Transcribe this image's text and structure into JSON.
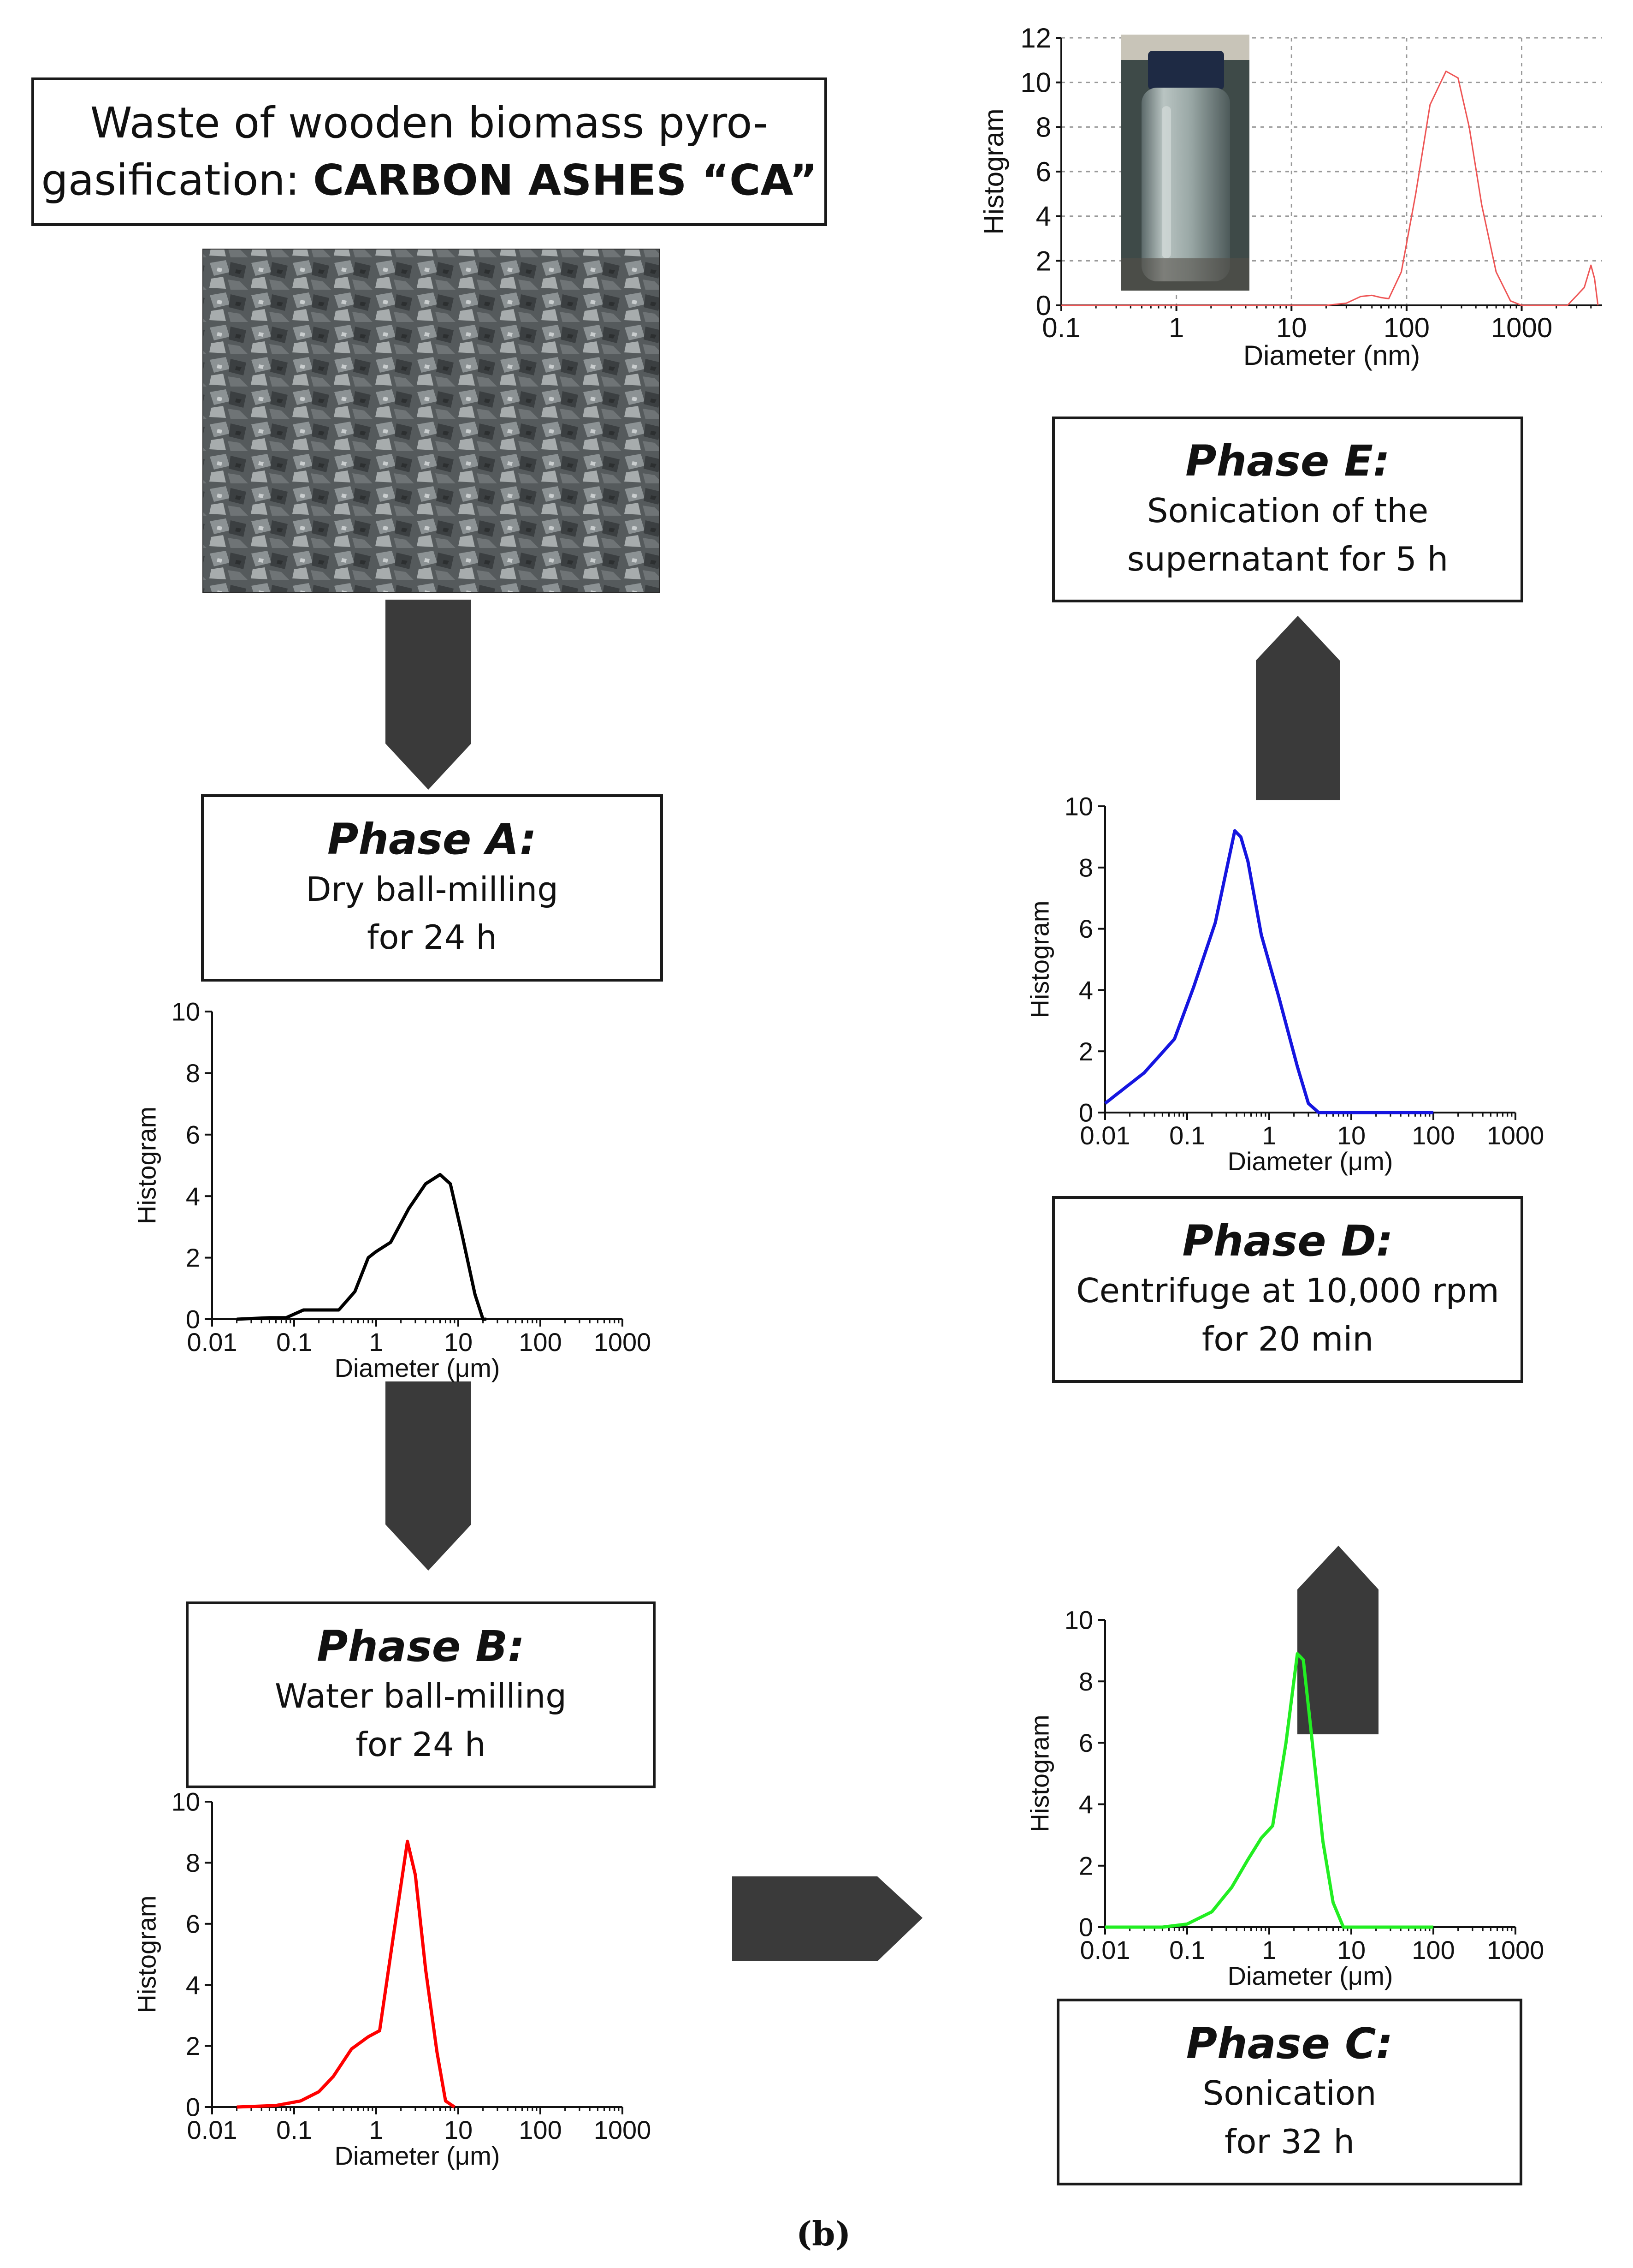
{
  "colors": {
    "arrow": "#3a3a3a",
    "phase_a": "#000000",
    "phase_b": "#ff0000",
    "phase_c": "#22ee22",
    "phase_d": "#1515e0",
    "phase_e": "#ee5555"
  },
  "start": {
    "line1": "Waste of wooden biomass pyro-",
    "line2_prefix": "gasification: ",
    "line2_bold": "CARBON ASHES “CA”"
  },
  "phases": {
    "a": {
      "title": "Phase A:",
      "line1": "Dry ball-milling",
      "line2": "for 24 h"
    },
    "b": {
      "title": "Phase B:",
      "line1": "Water ball-milling",
      "line2": "for 24 h"
    },
    "c": {
      "title": "Phase C:",
      "line1": "Sonication",
      "line2": "for 32 h"
    },
    "d": {
      "title": "Phase D:",
      "line1": "Centrifuge at 10,000 rpm",
      "line2": "for 20 min"
    },
    "e": {
      "title": "Phase E:",
      "line1": "Sonication of the",
      "line2": "supernatant for 5 h"
    }
  },
  "caption": "(b)",
  "images": {
    "ashes": "carbon ashes photo",
    "vial": "vial photo"
  },
  "chart_data": [
    {
      "id": "phase-a",
      "type": "line",
      "ylabel": "Histogram",
      "xlabel": "Diameter (μm)",
      "xscale": "log",
      "xlim": [
        0.01,
        1000
      ],
      "ylim": [
        0,
        10
      ],
      "xticks": [
        "0.01",
        "0.1",
        "1",
        "10",
        "100",
        "1000"
      ],
      "yticks": [
        "0",
        "2",
        "4",
        "6",
        "8",
        "10"
      ],
      "x": [
        0.02,
        0.05,
        0.08,
        0.13,
        0.2,
        0.35,
        0.55,
        0.8,
        1.0,
        1.5,
        2.5,
        4,
        6,
        8,
        11,
        16,
        20,
        22
      ],
      "y": [
        0,
        0.05,
        0.05,
        0.3,
        0.3,
        0.3,
        0.9,
        2.0,
        2.2,
        2.5,
        3.6,
        4.4,
        4.7,
        4.4,
        2.8,
        0.8,
        0,
        0
      ]
    },
    {
      "id": "phase-b",
      "type": "line",
      "ylabel": "Histogram",
      "xlabel": "Diameter (μm)",
      "xscale": "log",
      "xlim": [
        0.01,
        1000
      ],
      "ylim": [
        0,
        10
      ],
      "xticks": [
        "0.01",
        "0.1",
        "1",
        "10",
        "100",
        "1000"
      ],
      "yticks": [
        "0",
        "2",
        "4",
        "6",
        "8",
        "10"
      ],
      "x": [
        0.02,
        0.06,
        0.12,
        0.2,
        0.3,
        0.5,
        0.8,
        1.1,
        1.6,
        2.4,
        3.0,
        4.0,
        5.5,
        7.0,
        9.0
      ],
      "y": [
        0,
        0.05,
        0.2,
        0.5,
        1.0,
        1.9,
        2.3,
        2.5,
        5.5,
        8.7,
        7.6,
        4.5,
        1.8,
        0.2,
        0
      ]
    },
    {
      "id": "phase-c",
      "type": "line",
      "ylabel": "Histogram",
      "xlabel": "Diameter (μm)",
      "xscale": "log",
      "xlim": [
        0.01,
        1000
      ],
      "ylim": [
        0,
        10
      ],
      "xticks": [
        "0.01",
        "0.1",
        "1",
        "10",
        "100",
        "1000"
      ],
      "yticks": [
        "0",
        "2",
        "4",
        "6",
        "8",
        "10"
      ],
      "x": [
        0.01,
        0.05,
        0.1,
        0.2,
        0.35,
        0.55,
        0.8,
        1.1,
        1.6,
        2.2,
        2.6,
        3.2,
        4.5,
        6,
        8,
        15,
        100
      ],
      "y": [
        0,
        0,
        0.1,
        0.5,
        1.3,
        2.2,
        2.9,
        3.3,
        6.0,
        8.9,
        8.7,
        6.5,
        2.8,
        0.8,
        0,
        0,
        0
      ]
    },
    {
      "id": "phase-d",
      "type": "line",
      "ylabel": "Histogram",
      "xlabel": "Diameter (μm)",
      "xscale": "log",
      "xlim": [
        0.01,
        1000
      ],
      "ylim": [
        0,
        10
      ],
      "xticks": [
        "0.01",
        "0.1",
        "1",
        "10",
        "100",
        "1000"
      ],
      "yticks": [
        "0",
        "2",
        "4",
        "6",
        "8",
        "10"
      ],
      "x": [
        0.01,
        0.03,
        0.07,
        0.12,
        0.22,
        0.38,
        0.45,
        0.55,
        0.8,
        1.3,
        2.2,
        3.0,
        4.0,
        10,
        100
      ],
      "y": [
        0.3,
        1.3,
        2.4,
        4.1,
        6.2,
        9.2,
        9.0,
        8.2,
        5.8,
        3.8,
        1.5,
        0.3,
        0,
        0,
        0
      ]
    },
    {
      "id": "phase-e",
      "type": "line",
      "ylabel": "Histogram",
      "xlabel": "Diameter (nm)",
      "xscale": "log",
      "xlim": [
        0.1,
        5000
      ],
      "ylim": [
        0,
        12
      ],
      "grid": true,
      "xticks": [
        "0.1",
        "1",
        "10",
        "100",
        "1000"
      ],
      "yticks": [
        "0",
        "2",
        "4",
        "6",
        "8",
        "10",
        "12"
      ],
      "x": [
        0.1,
        20,
        30,
        40,
        50,
        60,
        70,
        90,
        120,
        160,
        220,
        280,
        350,
        450,
        600,
        800,
        1000,
        2500,
        3500,
        4000,
        4300,
        4600
      ],
      "y": [
        0,
        0,
        0.1,
        0.4,
        0.45,
        0.35,
        0.3,
        1.5,
        5.0,
        9.0,
        10.5,
        10.2,
        8.0,
        4.5,
        1.5,
        0.2,
        0,
        0,
        0.8,
        1.8,
        1.2,
        0
      ]
    }
  ]
}
